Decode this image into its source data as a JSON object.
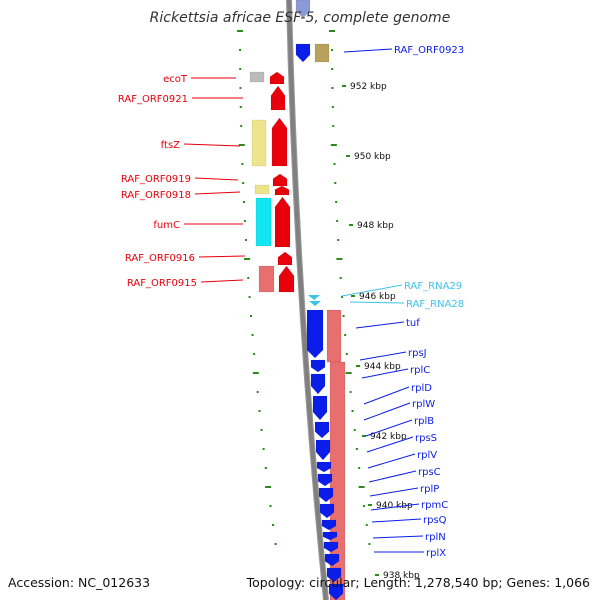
{
  "title": "Rickettsia africae ESF-5, complete genome",
  "accession": "Accession: NC_012633",
  "summary": "Topology: circular; Length: 1,278,540 bp; Genes: 1,066",
  "colors": {
    "forward_red": "#e8000b",
    "reverse_blue": "#0b1de8",
    "pink": "#e86f6f",
    "khaki": "#eee48c",
    "cyan": "#12e6f2",
    "rna_light": "#3cc3e8",
    "gray_backbone": "#808080",
    "tick_green": "#2a8a1a"
  },
  "kbp_labels": [
    {
      "text": "952 kbp"
    },
    {
      "text": "950 kbp"
    },
    {
      "text": "948 kbp"
    },
    {
      "text": "946 kbp"
    },
    {
      "text": "944 kbp"
    },
    {
      "text": "942 kbp"
    },
    {
      "text": "940 kbp"
    },
    {
      "text": "938 kbp"
    }
  ],
  "left_genes": [
    {
      "name": "ecoT"
    },
    {
      "name": "RAF_ORF0921"
    },
    {
      "name": "ftsZ"
    },
    {
      "name": "RAF_ORF0919"
    },
    {
      "name": "RAF_ORF0918"
    },
    {
      "name": "fumC"
    },
    {
      "name": "RAF_ORF0916"
    },
    {
      "name": "RAF_ORF0915"
    }
  ],
  "right_genes": [
    {
      "name": "RAF_ORF0923"
    },
    {
      "name": "RAF_RNA29"
    },
    {
      "name": "RAF_RNA28"
    },
    {
      "name": "tuf"
    },
    {
      "name": "rpsJ"
    },
    {
      "name": "rplC"
    },
    {
      "name": "rplD"
    },
    {
      "name": "rplW"
    },
    {
      "name": "rplB"
    },
    {
      "name": "rpsS"
    },
    {
      "name": "rplV"
    },
    {
      "name": "rpsC"
    },
    {
      "name": "rplP"
    },
    {
      "name": "rpmC"
    },
    {
      "name": "rpsQ"
    },
    {
      "name": "rplN"
    },
    {
      "name": "rplX"
    }
  ]
}
